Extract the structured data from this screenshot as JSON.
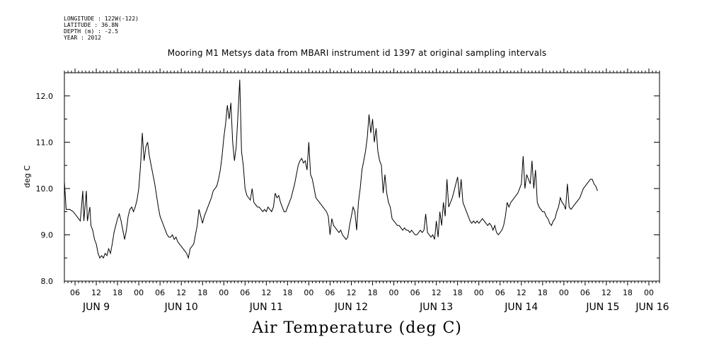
{
  "header": {
    "longitude": "LONGITUDE : 122W(-122)",
    "latitude": "LATITUDE : 36.8N",
    "depth": "DEPTH (m) : -2.5",
    "year": "YEAR : 2012"
  },
  "chart_data": {
    "type": "line",
    "title": "Mooring M1 Metsys data from MBARI instrument id 1397 at original sampling intervals",
    "xlabel": "Air Temperature (deg C)",
    "ylabel": "deg C",
    "ylim": [
      8.0,
      12.5
    ],
    "xlim_hours": [
      3,
      171
    ],
    "y_ticks": [
      "8.0",
      "9.0",
      "10.0",
      "11.0",
      "12.0"
    ],
    "hour_tick_labels": [
      "06",
      "12",
      "18",
      "00",
      "06",
      "12",
      "18",
      "00",
      "06",
      "12",
      "18",
      "00",
      "06",
      "12",
      "18",
      "00",
      "06",
      "12",
      "18",
      "00",
      "06",
      "12",
      "18",
      "00",
      "06",
      "12",
      "18",
      "00"
    ],
    "day_labels": [
      "JUN  9",
      "JUN 10",
      "JUN 11",
      "JUN 12",
      "JUN 13",
      "JUN 14",
      "JUN 15",
      "JUN 16"
    ],
    "grid": false,
    "series": [
      {
        "values": [
          [
            3.0,
            10.15
          ],
          [
            3.5,
            9.55
          ],
          [
            4.5,
            9.55
          ],
          [
            5.5,
            9.5
          ],
          [
            6.5,
            9.4
          ],
          [
            7.5,
            9.3
          ],
          [
            8.2,
            9.95
          ],
          [
            8.5,
            9.3
          ],
          [
            9.2,
            9.95
          ],
          [
            9.5,
            9.3
          ],
          [
            10.2,
            9.6
          ],
          [
            10.5,
            9.2
          ],
          [
            11.0,
            9.1
          ],
          [
            11.5,
            8.9
          ],
          [
            12.0,
            8.8
          ],
          [
            12.5,
            8.6
          ],
          [
            13.0,
            8.5
          ],
          [
            13.5,
            8.55
          ],
          [
            14.0,
            8.5
          ],
          [
            14.5,
            8.6
          ],
          [
            15.0,
            8.55
          ],
          [
            15.5,
            8.7
          ],
          [
            16.0,
            8.6
          ],
          [
            16.5,
            8.8
          ],
          [
            17.0,
            9.05
          ],
          [
            17.5,
            9.2
          ],
          [
            18.0,
            9.35
          ],
          [
            18.5,
            9.45
          ],
          [
            19.0,
            9.3
          ],
          [
            19.5,
            9.1
          ],
          [
            20.0,
            8.9
          ],
          [
            20.5,
            9.1
          ],
          [
            21.0,
            9.4
          ],
          [
            21.5,
            9.55
          ],
          [
            22.0,
            9.6
          ],
          [
            22.5,
            9.5
          ],
          [
            23.0,
            9.6
          ],
          [
            23.5,
            9.75
          ],
          [
            24.0,
            10.0
          ],
          [
            24.5,
            10.5
          ],
          [
            25.0,
            11.2
          ],
          [
            25.5,
            10.6
          ],
          [
            26.0,
            10.9
          ],
          [
            26.5,
            11.0
          ],
          [
            27.0,
            10.7
          ],
          [
            27.5,
            10.5
          ],
          [
            28.0,
            10.3
          ],
          [
            28.5,
            10.1
          ],
          [
            29.0,
            9.85
          ],
          [
            29.5,
            9.6
          ],
          [
            30.0,
            9.4
          ],
          [
            30.5,
            9.3
          ],
          [
            31.0,
            9.2
          ],
          [
            31.5,
            9.1
          ],
          [
            32.0,
            9.0
          ],
          [
            32.5,
            8.95
          ],
          [
            33.0,
            8.95
          ],
          [
            33.5,
            9.0
          ],
          [
            34.0,
            8.9
          ],
          [
            34.5,
            8.95
          ],
          [
            35.0,
            8.85
          ],
          [
            35.5,
            8.8
          ],
          [
            36.0,
            8.75
          ],
          [
            36.5,
            8.7
          ],
          [
            37.0,
            8.65
          ],
          [
            37.5,
            8.6
          ],
          [
            38.0,
            8.5
          ],
          [
            38.5,
            8.7
          ],
          [
            39.0,
            8.75
          ],
          [
            39.5,
            8.8
          ],
          [
            40.0,
            9.0
          ],
          [
            40.5,
            9.2
          ],
          [
            41.0,
            9.55
          ],
          [
            41.5,
            9.4
          ],
          [
            42.0,
            9.25
          ],
          [
            42.5,
            9.4
          ],
          [
            43.0,
            9.5
          ],
          [
            43.5,
            9.6
          ],
          [
            44.0,
            9.7
          ],
          [
            44.5,
            9.8
          ],
          [
            45.0,
            9.95
          ],
          [
            45.5,
            10.0
          ],
          [
            46.0,
            10.05
          ],
          [
            46.5,
            10.2
          ],
          [
            47.0,
            10.4
          ],
          [
            47.5,
            10.7
          ],
          [
            48.0,
            11.1
          ],
          [
            48.5,
            11.4
          ],
          [
            49.0,
            11.8
          ],
          [
            49.5,
            11.5
          ],
          [
            50.0,
            11.85
          ],
          [
            50.5,
            11.0
          ],
          [
            51.0,
            10.6
          ],
          [
            51.5,
            10.9
          ],
          [
            52.0,
            11.6
          ],
          [
            52.5,
            12.35
          ],
          [
            53.0,
            10.8
          ],
          [
            53.5,
            10.5
          ],
          [
            54.0,
            10.0
          ],
          [
            54.5,
            9.85
          ],
          [
            55.0,
            9.8
          ],
          [
            55.5,
            9.75
          ],
          [
            56.0,
            10.0
          ],
          [
            56.5,
            9.7
          ],
          [
            57.0,
            9.65
          ],
          [
            57.5,
            9.6
          ],
          [
            58.0,
            9.6
          ],
          [
            58.5,
            9.55
          ],
          [
            59.0,
            9.5
          ],
          [
            59.5,
            9.55
          ],
          [
            60.0,
            9.5
          ],
          [
            60.5,
            9.6
          ],
          [
            61.0,
            9.55
          ],
          [
            61.5,
            9.5
          ],
          [
            62.0,
            9.6
          ],
          [
            62.5,
            9.9
          ],
          [
            63.0,
            9.8
          ],
          [
            63.5,
            9.85
          ],
          [
            64.0,
            9.7
          ],
          [
            64.5,
            9.6
          ],
          [
            65.0,
            9.5
          ],
          [
            65.5,
            9.5
          ],
          [
            66.0,
            9.6
          ],
          [
            66.5,
            9.7
          ],
          [
            67.0,
            9.8
          ],
          [
            67.5,
            9.95
          ],
          [
            68.0,
            10.1
          ],
          [
            68.5,
            10.3
          ],
          [
            69.0,
            10.5
          ],
          [
            69.5,
            10.6
          ],
          [
            70.0,
            10.65
          ],
          [
            70.5,
            10.55
          ],
          [
            71.0,
            10.6
          ],
          [
            71.5,
            10.4
          ],
          [
            72.0,
            11.0
          ],
          [
            72.5,
            10.3
          ],
          [
            73.0,
            10.2
          ],
          [
            73.5,
            10.0
          ],
          [
            74.0,
            9.8
          ],
          [
            74.5,
            9.75
          ],
          [
            75.0,
            9.7
          ],
          [
            75.5,
            9.65
          ],
          [
            76.0,
            9.6
          ],
          [
            76.5,
            9.55
          ],
          [
            77.0,
            9.5
          ],
          [
            77.5,
            9.4
          ],
          [
            78.0,
            9.0
          ],
          [
            78.5,
            9.35
          ],
          [
            79.0,
            9.2
          ],
          [
            79.5,
            9.15
          ],
          [
            80.0,
            9.1
          ],
          [
            80.5,
            9.05
          ],
          [
            81.0,
            9.1
          ],
          [
            81.5,
            9.0
          ],
          [
            82.0,
            8.95
          ],
          [
            82.5,
            8.9
          ],
          [
            83.0,
            8.95
          ],
          [
            83.5,
            9.2
          ],
          [
            84.0,
            9.4
          ],
          [
            84.5,
            9.6
          ],
          [
            85.0,
            9.5
          ],
          [
            85.5,
            9.1
          ],
          [
            86.0,
            9.7
          ],
          [
            86.5,
            10.0
          ],
          [
            87.0,
            10.4
          ],
          [
            87.5,
            10.6
          ],
          [
            88.0,
            10.8
          ],
          [
            88.5,
            11.1
          ],
          [
            89.0,
            11.6
          ],
          [
            89.5,
            11.2
          ],
          [
            90.0,
            11.5
          ],
          [
            90.5,
            11.0
          ],
          [
            91.0,
            11.3
          ],
          [
            91.5,
            10.8
          ],
          [
            92.0,
            10.6
          ],
          [
            92.5,
            10.5
          ],
          [
            93.0,
            9.9
          ],
          [
            93.5,
            10.3
          ],
          [
            94.0,
            9.9
          ],
          [
            94.5,
            9.7
          ],
          [
            95.0,
            9.6
          ],
          [
            95.5,
            9.35
          ],
          [
            96.0,
            9.3
          ],
          [
            96.5,
            9.25
          ],
          [
            97.0,
            9.2
          ],
          [
            97.5,
            9.2
          ],
          [
            98.0,
            9.15
          ],
          [
            98.5,
            9.1
          ],
          [
            99.0,
            9.15
          ],
          [
            99.5,
            9.1
          ],
          [
            100.0,
            9.1
          ],
          [
            100.5,
            9.05
          ],
          [
            101.0,
            9.1
          ],
          [
            101.5,
            9.05
          ],
          [
            102.0,
            9.0
          ],
          [
            102.5,
            9.0
          ],
          [
            103.0,
            9.05
          ],
          [
            103.5,
            9.1
          ],
          [
            104.0,
            9.05
          ],
          [
            104.5,
            9.1
          ],
          [
            105.0,
            9.45
          ],
          [
            105.5,
            9.05
          ],
          [
            106.0,
            9.0
          ],
          [
            106.5,
            8.95
          ],
          [
            107.0,
            9.0
          ],
          [
            107.5,
            8.9
          ],
          [
            108.0,
            9.3
          ],
          [
            108.5,
            8.95
          ],
          [
            109.0,
            9.5
          ],
          [
            109.5,
            9.2
          ],
          [
            110.0,
            9.7
          ],
          [
            110.5,
            9.4
          ],
          [
            111.0,
            10.2
          ],
          [
            111.5,
            9.6
          ],
          [
            112.0,
            9.7
          ],
          [
            112.5,
            9.8
          ],
          [
            113.0,
            9.95
          ],
          [
            113.5,
            10.1
          ],
          [
            114.0,
            10.25
          ],
          [
            114.5,
            9.8
          ],
          [
            115.0,
            10.2
          ],
          [
            115.5,
            9.7
          ],
          [
            116.0,
            9.6
          ],
          [
            116.5,
            9.5
          ],
          [
            117.0,
            9.4
          ],
          [
            117.5,
            9.3
          ],
          [
            118.0,
            9.25
          ],
          [
            118.5,
            9.3
          ],
          [
            119.0,
            9.25
          ],
          [
            119.5,
            9.3
          ],
          [
            120.0,
            9.25
          ],
          [
            120.5,
            9.3
          ],
          [
            121.0,
            9.35
          ],
          [
            121.5,
            9.3
          ],
          [
            122.0,
            9.25
          ],
          [
            122.5,
            9.2
          ],
          [
            123.0,
            9.25
          ],
          [
            123.5,
            9.2
          ],
          [
            124.0,
            9.1
          ],
          [
            124.5,
            9.2
          ],
          [
            125.0,
            9.05
          ],
          [
            125.5,
            9.0
          ],
          [
            126.0,
            9.05
          ],
          [
            126.5,
            9.1
          ],
          [
            127.0,
            9.2
          ],
          [
            127.5,
            9.4
          ],
          [
            128.0,
            9.7
          ],
          [
            128.5,
            9.6
          ],
          [
            129.0,
            9.7
          ],
          [
            129.5,
            9.75
          ],
          [
            130.0,
            9.8
          ],
          [
            130.5,
            9.85
          ],
          [
            131.0,
            9.9
          ],
          [
            131.5,
            10.0
          ],
          [
            132.0,
            10.1
          ],
          [
            132.5,
            10.7
          ],
          [
            133.0,
            10.0
          ],
          [
            133.5,
            10.3
          ],
          [
            134.0,
            10.2
          ],
          [
            134.5,
            10.1
          ],
          [
            135.0,
            10.6
          ],
          [
            135.5,
            10.0
          ],
          [
            136.0,
            10.4
          ],
          [
            136.5,
            9.7
          ],
          [
            137.0,
            9.6
          ],
          [
            137.5,
            9.55
          ],
          [
            138.0,
            9.5
          ],
          [
            138.5,
            9.5
          ],
          [
            139.0,
            9.4
          ],
          [
            139.5,
            9.35
          ],
          [
            140.0,
            9.25
          ],
          [
            140.5,
            9.2
          ],
          [
            141.0,
            9.3
          ],
          [
            141.5,
            9.35
          ],
          [
            142.0,
            9.5
          ],
          [
            142.5,
            9.6
          ],
          [
            143.0,
            9.8
          ],
          [
            143.5,
            9.7
          ],
          [
            144.0,
            9.65
          ],
          [
            144.5,
            9.55
          ],
          [
            145.0,
            10.1
          ],
          [
            145.5,
            9.6
          ],
          [
            146.0,
            9.55
          ],
          [
            146.5,
            9.6
          ],
          [
            147.0,
            9.65
          ],
          [
            147.5,
            9.7
          ],
          [
            148.0,
            9.75
          ],
          [
            148.5,
            9.8
          ],
          [
            149.0,
            9.9
          ],
          [
            149.5,
            10.0
          ],
          [
            150.0,
            10.05
          ],
          [
            150.5,
            10.1
          ],
          [
            151.0,
            10.15
          ],
          [
            151.5,
            10.2
          ],
          [
            152.0,
            10.2
          ],
          [
            152.5,
            10.1
          ],
          [
            153.0,
            10.05
          ],
          [
            153.5,
            9.95
          ]
        ]
      }
    ]
  }
}
